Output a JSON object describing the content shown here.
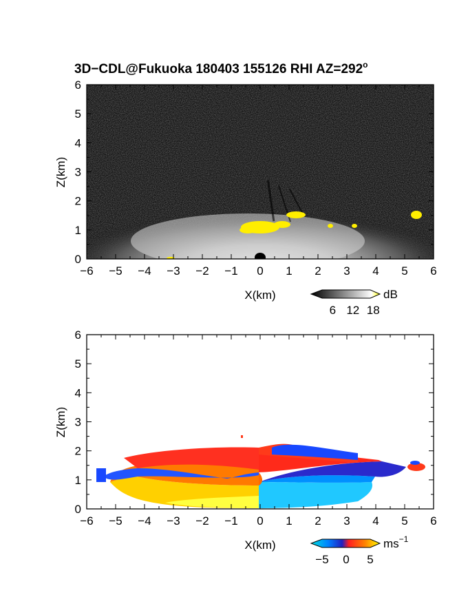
{
  "title": "3D−CDL@Fukuoka 180403 155126 RHI AZ=292",
  "title_sup": "o",
  "chart_data": [
    {
      "type": "heatmap",
      "name": "reflectivity",
      "xlabel": "X(km)",
      "ylabel": "Z(km)",
      "xlim": [
        -6,
        6
      ],
      "ylim": [
        0,
        6
      ],
      "xticks": [
        -6,
        -5,
        -4,
        -3,
        -2,
        -1,
        0,
        1,
        2,
        3,
        4,
        5,
        6
      ],
      "yticks": [
        0,
        1,
        2,
        3,
        4,
        5,
        6
      ],
      "xtick_labels": [
        "−6",
        "−5",
        "−4",
        "−3",
        "−2",
        "−1",
        "0",
        "1",
        "2",
        "3",
        "4",
        "5",
        "6"
      ],
      "ytick_labels": [
        "0",
        "1",
        "2",
        "3",
        "4",
        "5",
        "6"
      ],
      "colorbar": {
        "unit": "dB",
        "ticks": [
          6,
          12,
          18
        ],
        "tick_labels": [
          "6",
          "12",
          "18"
        ],
        "range": [
          0,
          20
        ],
        "colors": [
          "#000000",
          "#ffffff",
          "#ffff00"
        ]
      },
      "grid": false
    },
    {
      "type": "heatmap",
      "name": "radial-velocity",
      "xlabel": "X(km)",
      "ylabel": "Z(km)",
      "xlim": [
        -6,
        6
      ],
      "ylim": [
        0,
        6
      ],
      "xticks": [
        -6,
        -5,
        -4,
        -3,
        -2,
        -1,
        0,
        1,
        2,
        3,
        4,
        5,
        6
      ],
      "yticks": [
        0,
        1,
        2,
        3,
        4,
        5,
        6
      ],
      "xtick_labels": [
        "−6",
        "−5",
        "−4",
        "−3",
        "−2",
        "−1",
        "0",
        "1",
        "2",
        "3",
        "4",
        "5",
        "6"
      ],
      "ytick_labels": [
        "0",
        "1",
        "2",
        "3",
        "4",
        "5",
        "6"
      ],
      "colorbar": {
        "unit": "ms",
        "unit_sup": "−1",
        "ticks": [
          -5,
          0,
          5
        ],
        "tick_labels": [
          "−5",
          "0",
          "5"
        ],
        "range": [
          -7,
          7
        ],
        "colors": [
          "#00e0e0",
          "#0060ff",
          "#2020c0",
          "#ff2020",
          "#ff8000",
          "#ffff00"
        ]
      },
      "grid": false
    }
  ]
}
